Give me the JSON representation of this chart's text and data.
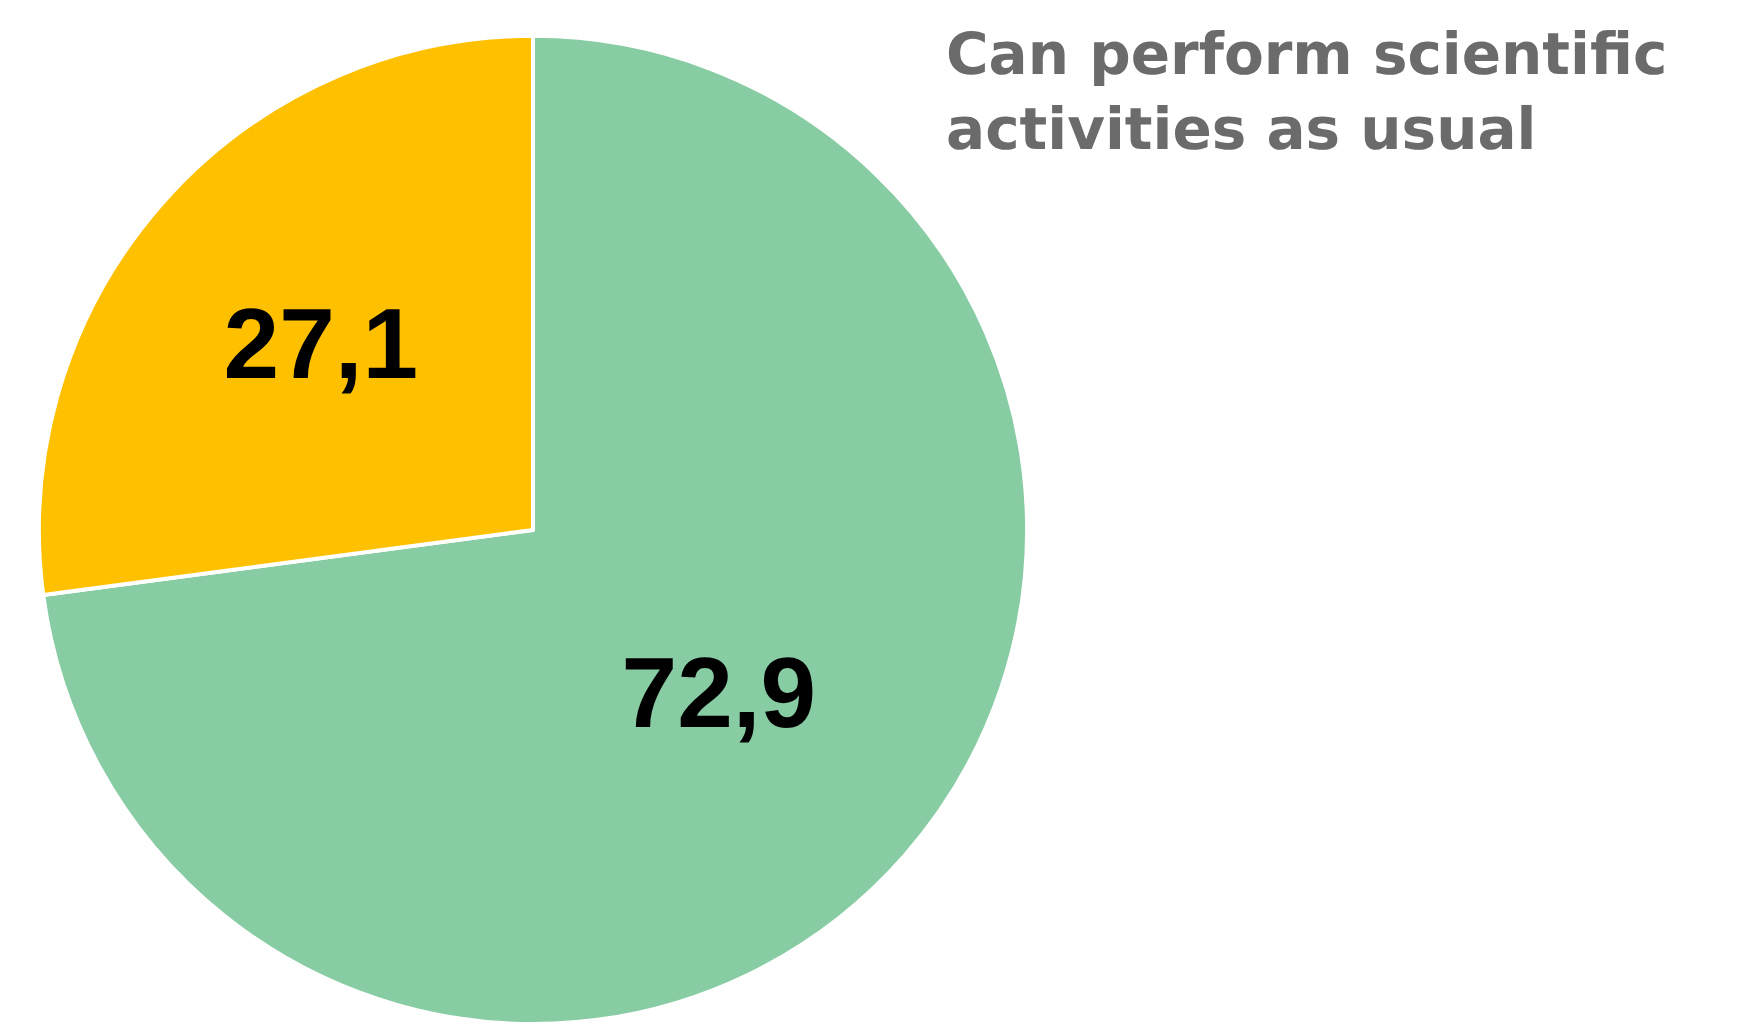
{
  "chart_data": {
    "type": "pie",
    "title": "Can perform scientific activities as usual",
    "categories": [
      null,
      null
    ],
    "values": [
      72.9,
      27.1
    ],
    "value_labels": [
      "72,9",
      "27,1"
    ],
    "colors": [
      "#88cca4",
      "#ffc000"
    ],
    "legend": false
  }
}
